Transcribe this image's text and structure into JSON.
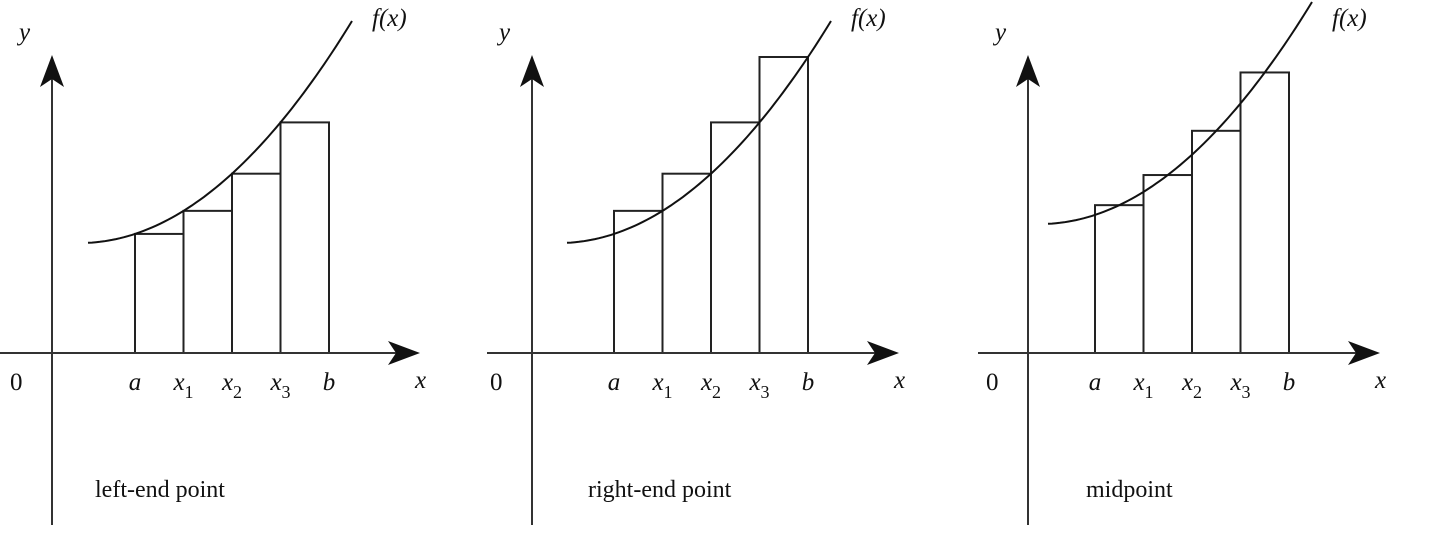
{
  "panels": [
    {
      "axis_y": "y",
      "axis_x": "x",
      "origin": "0",
      "function_label": "f(x)",
      "points": [
        {
          "text": "a"
        },
        {
          "text": "x",
          "sub": "1"
        },
        {
          "text": "x",
          "sub": "2"
        },
        {
          "text": "x",
          "sub": "3"
        },
        {
          "text": "b"
        }
      ],
      "caption": "left-end point"
    },
    {
      "axis_y": "y",
      "axis_x": "x",
      "origin": "0",
      "function_label": "f(x)",
      "points": [
        {
          "text": "a"
        },
        {
          "text": "x",
          "sub": "1"
        },
        {
          "text": "x",
          "sub": "2"
        },
        {
          "text": "x",
          "sub": "3"
        },
        {
          "text": "b"
        }
      ],
      "caption": "right-end point"
    },
    {
      "axis_y": "y",
      "axis_x": "x",
      "origin": "0",
      "function_label": "f(x)",
      "points": [
        {
          "text": "a"
        },
        {
          "text": "x",
          "sub": "1"
        },
        {
          "text": "x",
          "sub": "2"
        },
        {
          "text": "x",
          "sub": "3"
        },
        {
          "text": "b"
        }
      ],
      "caption": "midpoint"
    }
  ]
}
